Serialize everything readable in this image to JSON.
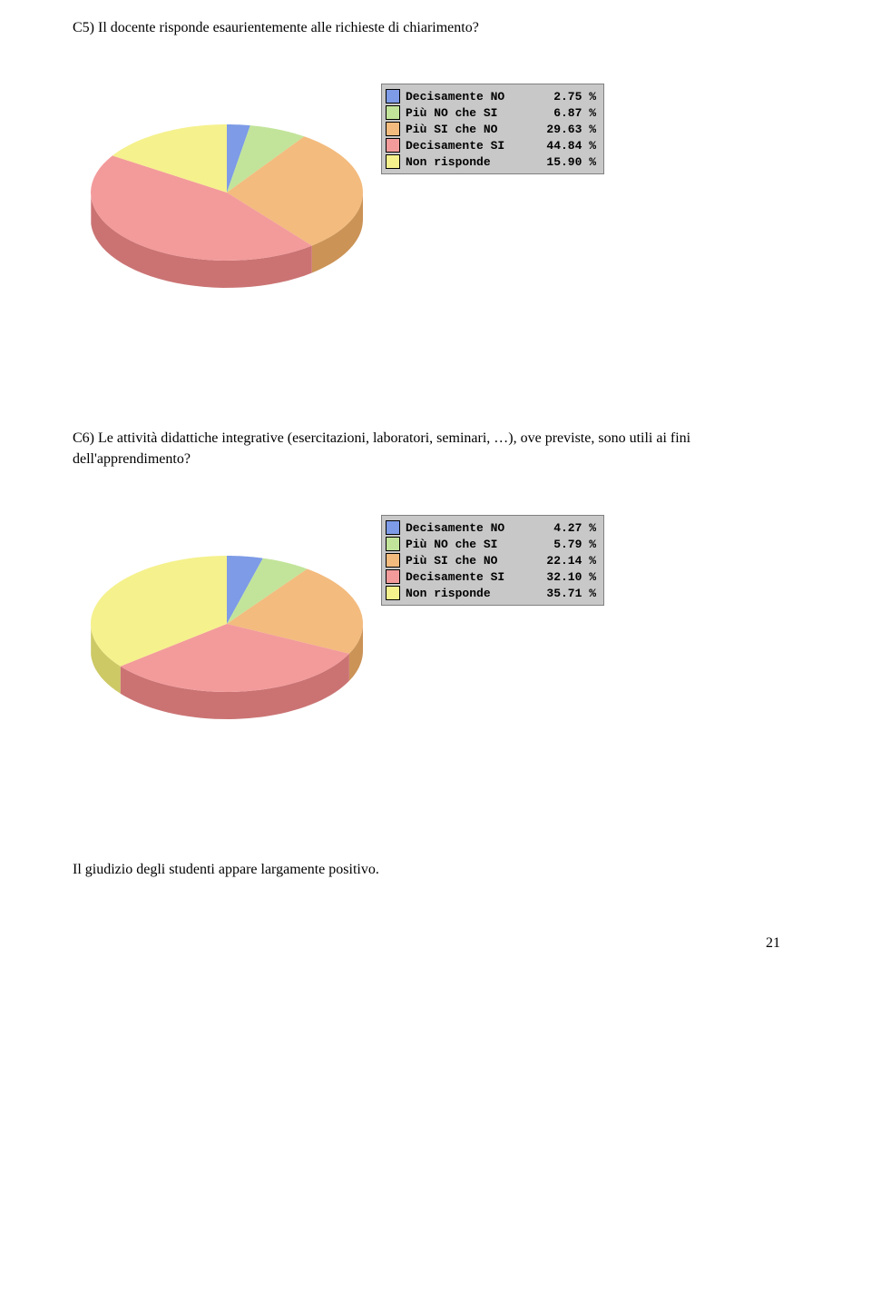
{
  "questions": {
    "c5": "C5) Il docente risponde esaurientemente alle richieste di chiarimento?",
    "c6": "C6) Le attività didattiche integrative (esercitazioni, laboratori, seminari, …), ove previste, sono utili ai fini dell'apprendimento?"
  },
  "conclusion": "Il giudizio degli studenti appare largamente positivo.",
  "page_number": "21",
  "chart_c5": {
    "type": "pie",
    "legend_bg": "#c8c8c8",
    "slices": [
      {
        "label": "Decisamente NO",
        "value": 2.75,
        "display": "2.75 %",
        "color": "#7d9be6"
      },
      {
        "label": "Più NO che SI",
        "value": 6.87,
        "display": "6.87 %",
        "color": "#c2e49a"
      },
      {
        "label": "Più SI che NO",
        "value": 29.63,
        "display": "29.63 %",
        "color": "#f3bb7e"
      },
      {
        "label": "Decisamente SI",
        "value": 44.84,
        "display": "44.84 %",
        "color": "#f39b9b"
      },
      {
        "label": "Non risponde",
        "value": 15.9,
        "display": "15.90 %",
        "color": "#f5f18d"
      }
    ]
  },
  "chart_c6": {
    "type": "pie",
    "legend_bg": "#c8c8c8",
    "slices": [
      {
        "label": "Decisamente NO",
        "value": 4.27,
        "display": "4.27 %",
        "color": "#7d9be6"
      },
      {
        "label": "Più NO che SI",
        "value": 5.79,
        "display": "5.79 %",
        "color": "#c2e49a"
      },
      {
        "label": "Più SI che NO",
        "value": 22.14,
        "display": "22.14 %",
        "color": "#f3bb7e"
      },
      {
        "label": "Decisamente SI",
        "value": 32.1,
        "display": "32.10 %",
        "color": "#f39b9b"
      },
      {
        "label": "Non risponde",
        "value": 35.71,
        "display": "35.71 %",
        "color": "#f5f18d"
      }
    ]
  }
}
